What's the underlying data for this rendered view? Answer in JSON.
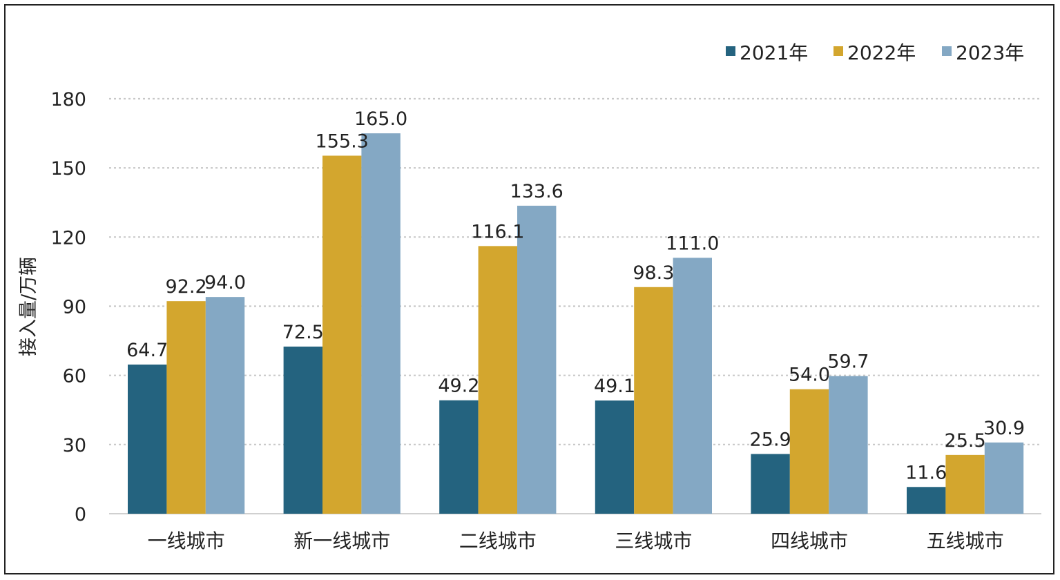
{
  "chart_data": {
    "type": "bar",
    "ylabel": "接入量/万辆",
    "xlabel": "",
    "ylim": [
      0,
      180
    ],
    "yticks": [
      0,
      30,
      60,
      90,
      120,
      150,
      180
    ],
    "grid": true,
    "legend_position": "top-right",
    "categories": [
      "一线城市",
      "新一线城市",
      "二线城市",
      "三线城市",
      "四线城市",
      "五线城市"
    ],
    "series": [
      {
        "name": "2021年",
        "color": "#24637f",
        "values": [
          64.7,
          72.5,
          49.2,
          49.1,
          25.9,
          11.6
        ]
      },
      {
        "name": "2022年",
        "color": "#d3a62e",
        "values": [
          92.2,
          155.3,
          116.1,
          98.3,
          54.0,
          25.5
        ]
      },
      {
        "name": "2023年",
        "color": "#84a8c4",
        "values": [
          94.0,
          165.0,
          133.6,
          111.0,
          59.7,
          30.9
        ]
      }
    ]
  }
}
